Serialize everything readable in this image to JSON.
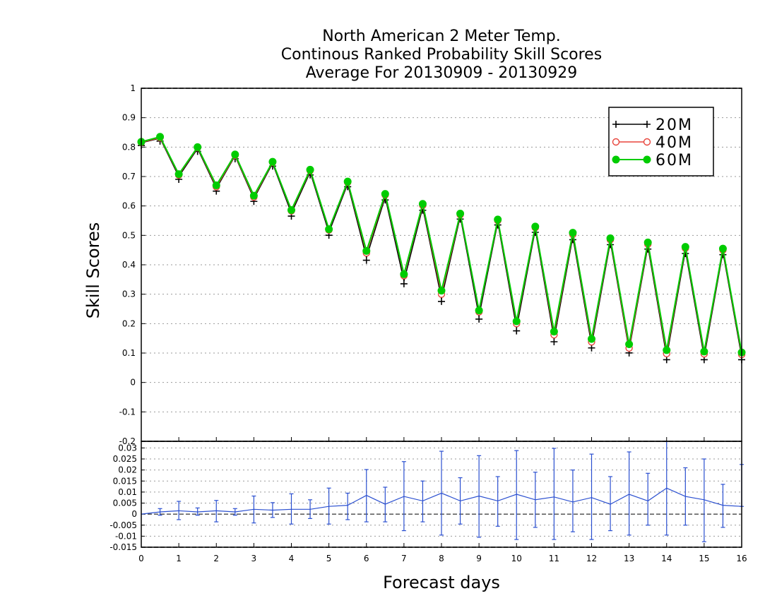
{
  "title_lines": [
    "North American 2 Meter Temp.",
    "Continous Ranked Probability Skill Scores",
    "Average For 20130909 - 20130929"
  ],
  "colors": {
    "20M": "#000000",
    "40M": "#e8453c",
    "60M": "#00cc00",
    "diff": "#2a4fd0",
    "grid": "#9a9a9a"
  },
  "chart_data": [
    {
      "type": "line",
      "panel": "main",
      "xlabel": "Forecast days",
      "ylabel": "Skill Scores",
      "xlim": [
        0,
        16
      ],
      "ylim": [
        -0.2,
        1
      ],
      "x_ticks": [
        "0",
        "1",
        "2",
        "3",
        "4",
        "5",
        "6",
        "7",
        "8",
        "9",
        "10",
        "11",
        "12",
        "13",
        "14",
        "15",
        "16"
      ],
      "y_ticks": [
        "-0.2",
        "-0.1",
        "0",
        "0.1",
        "0.2",
        "0.3",
        "0.4",
        "0.5",
        "0.6",
        "0.7",
        "0.8",
        "0.9",
        "1"
      ],
      "grid": true,
      "legend_position": "top-right",
      "x": [
        0,
        0.5,
        1,
        1.5,
        2,
        2.5,
        3,
        3.5,
        4,
        4.5,
        5,
        5.5,
        6,
        6.5,
        7,
        7.5,
        8,
        8.5,
        9,
        9.5,
        10,
        10.5,
        11,
        11.5,
        12,
        12.5,
        13,
        13.5,
        14,
        14.5,
        15,
        15.5,
        16
      ],
      "series": [
        {
          "name": "20M",
          "marker": "plus",
          "values": [
            0.815,
            0.83,
            0.7,
            0.795,
            0.66,
            0.77,
            0.625,
            0.745,
            0.575,
            0.715,
            0.51,
            0.675,
            0.425,
            0.63,
            0.345,
            0.595,
            0.285,
            0.565,
            0.225,
            0.545,
            0.185,
            0.52,
            0.148,
            0.495,
            0.127,
            0.478,
            0.11,
            0.463,
            0.087,
            0.448,
            0.087,
            0.444,
            0.087
          ]
        },
        {
          "name": "40M",
          "marker": "open-circle",
          "values": [
            0.816,
            0.832,
            0.705,
            0.798,
            0.665,
            0.772,
            0.63,
            0.748,
            0.583,
            0.72,
            0.518,
            0.68,
            0.44,
            0.637,
            0.363,
            0.602,
            0.3,
            0.57,
            0.24,
            0.55,
            0.2,
            0.526,
            0.162,
            0.503,
            0.138,
            0.485,
            0.117,
            0.47,
            0.098,
            0.456,
            0.097,
            0.45,
            0.095
          ]
        },
        {
          "name": "60M",
          "marker": "filled-circle",
          "values": [
            0.818,
            0.835,
            0.708,
            0.8,
            0.67,
            0.775,
            0.635,
            0.75,
            0.586,
            0.723,
            0.521,
            0.683,
            0.447,
            0.641,
            0.368,
            0.607,
            0.312,
            0.574,
            0.245,
            0.554,
            0.208,
            0.53,
            0.173,
            0.509,
            0.148,
            0.49,
            0.13,
            0.476,
            0.11,
            0.461,
            0.105,
            0.455,
            0.102
          ]
        }
      ]
    },
    {
      "type": "line",
      "panel": "difference",
      "xlim": [
        0,
        16
      ],
      "ylim": [
        -0.015,
        0.033
      ],
      "y_ticks": [
        "-0.015",
        "-0.01",
        "-0.005",
        "0",
        "0.005",
        "0.01",
        "0.015",
        "0.02",
        "0.025",
        "0.03"
      ],
      "grid": true,
      "x": [
        0,
        0.5,
        1,
        1.5,
        2,
        2.5,
        3,
        3.5,
        4,
        4.5,
        5,
        5.5,
        6,
        6.5,
        7,
        7.5,
        8,
        8.5,
        9,
        9.5,
        10,
        10.5,
        11,
        11.5,
        12,
        12.5,
        13,
        13.5,
        14,
        14.5,
        15,
        15.5,
        16
      ],
      "series": [
        {
          "name": "",
          "values": [
            0.0,
            0.001,
            0.0015,
            0.001,
            0.0015,
            0.001,
            0.0022,
            0.0018,
            0.0022,
            0.0022,
            0.0035,
            0.004,
            0.0085,
            0.0045,
            0.008,
            0.006,
            0.0095,
            0.006,
            0.0082,
            0.006,
            0.009,
            0.0065,
            0.0078,
            0.0055,
            0.0075,
            0.0045,
            0.009,
            0.006,
            0.0118,
            0.008,
            0.0065,
            0.004,
            0.0035
          ],
          "error_low": [
            0.0,
            -0.0005,
            -0.0025,
            -0.0005,
            -0.0035,
            -0.0005,
            -0.004,
            -0.0015,
            -0.0045,
            -0.002,
            -0.0045,
            -0.0025,
            -0.0035,
            -0.0035,
            -0.0075,
            -0.0035,
            -0.0095,
            -0.0045,
            -0.0105,
            -0.0055,
            -0.0115,
            -0.006,
            -0.0115,
            -0.008,
            -0.0115,
            -0.0075,
            -0.0095,
            -0.005,
            -0.0095,
            -0.005,
            -0.0125,
            -0.006,
            0.0035
          ],
          "error_high": [
            0.0,
            0.0025,
            0.0058,
            0.0028,
            0.0062,
            0.0025,
            0.0082,
            0.0052,
            0.0092,
            0.0065,
            0.0118,
            0.0095,
            0.0202,
            0.0122,
            0.0238,
            0.015,
            0.0285,
            0.0165,
            0.0265,
            0.017,
            0.0288,
            0.019,
            0.0298,
            0.02,
            0.0272,
            0.017,
            0.0282,
            0.0185,
            0.0345,
            0.021,
            0.025,
            0.0135,
            0.0225
          ]
        }
      ]
    }
  ]
}
